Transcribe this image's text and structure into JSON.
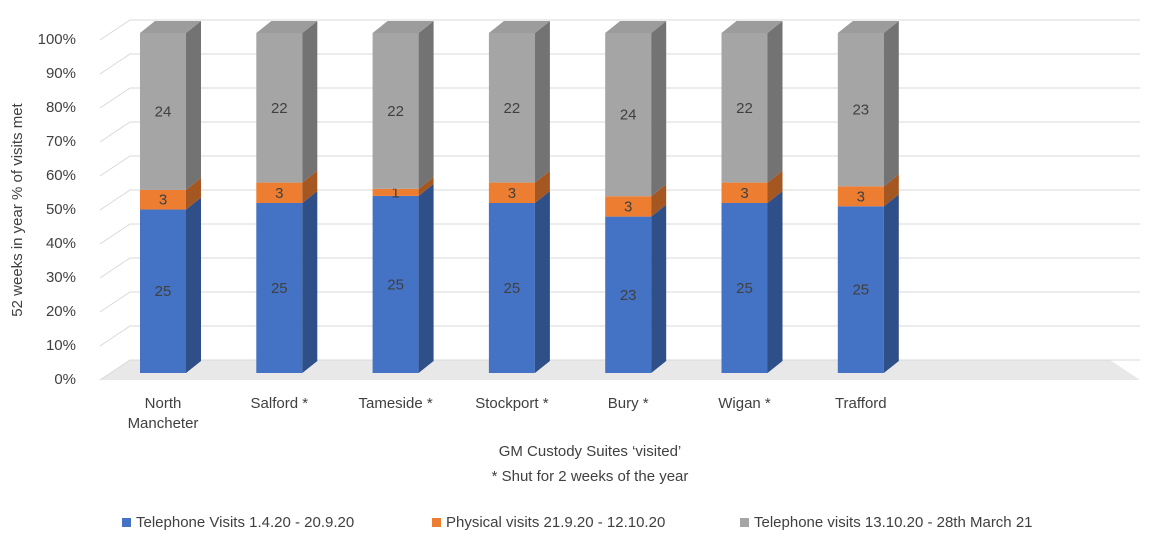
{
  "chart_data": {
    "type": "bar",
    "stacking": "percent",
    "y_label": "52 weeks in year % of visits met",
    "x_label": "GM Custody Suites ‘visited’",
    "x_note": "* Shut for 2  weeks of the year",
    "categories": [
      "North Mancheter",
      "Salford *",
      "Tameside *",
      "Stockport *",
      "Bury *",
      "Wigan *",
      "Trafford"
    ],
    "series": [
      {
        "name": "Telephone Visits 1.4.20 - 20.9.20",
        "color": "#4472c4",
        "values": [
          25,
          25,
          25,
          25,
          23,
          25,
          25
        ]
      },
      {
        "name": "Physical visits 21.9.20 - 12.10.20",
        "color": "#ed7d31",
        "values": [
          3,
          3,
          1,
          3,
          3,
          3,
          3
        ]
      },
      {
        "name": "Telephone visits 13.10.20 - 28th March 21",
        "color": "#a5a5a5",
        "values": [
          24,
          22,
          22,
          22,
          24,
          22,
          23
        ]
      }
    ],
    "ylim": [
      0,
      100
    ],
    "yticks": [
      {
        "value": 0,
        "label": "0%"
      },
      {
        "value": 10,
        "label": "10%"
      },
      {
        "value": 20,
        "label": "20%"
      },
      {
        "value": 30,
        "label": "30%"
      },
      {
        "value": 40,
        "label": "40%"
      },
      {
        "value": 50,
        "label": "50%"
      },
      {
        "value": 60,
        "label": "60%"
      },
      {
        "value": 70,
        "label": "70%"
      },
      {
        "value": 80,
        "label": "80%"
      },
      {
        "value": 90,
        "label": "90%"
      },
      {
        "value": 100,
        "label": "100%"
      }
    ],
    "grid": true,
    "legend": "bottom"
  }
}
